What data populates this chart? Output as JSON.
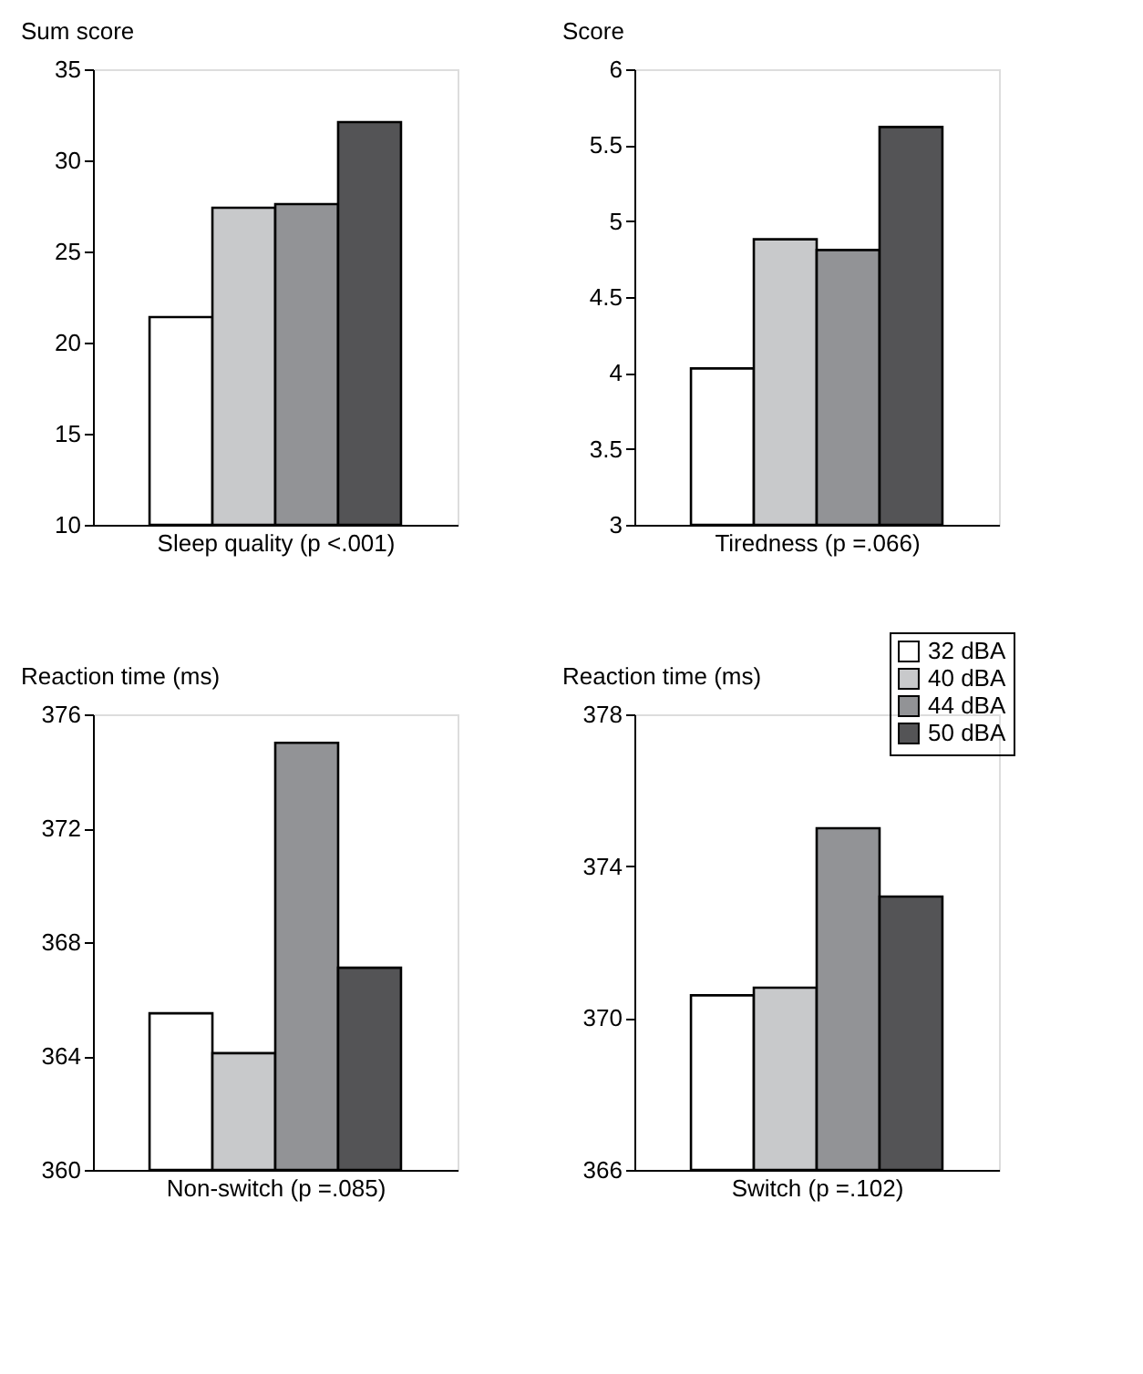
{
  "chart_data": [
    {
      "type": "bar",
      "xlabel": "Sleep quality (p <.001)",
      "ylabel": "Sum score",
      "categories": [
        null
      ],
      "ylim": [
        10,
        35
      ],
      "yticks": [
        10,
        15,
        20,
        25,
        30,
        35
      ],
      "grid": false,
      "legend": false,
      "series": [
        {
          "color": "#ffffff",
          "values": [
            21.4
          ]
        },
        {
          "color": "#c8c9cb",
          "values": [
            27.4
          ]
        },
        {
          "color": "#929396",
          "values": [
            27.6
          ]
        },
        {
          "color": "#545456",
          "values": [
            32.1
          ]
        }
      ]
    },
    {
      "type": "bar",
      "xlabel": "Tiredness (p =.066)",
      "ylabel": "Score",
      "categories": [
        null
      ],
      "ylim": [
        3,
        6
      ],
      "yticks": [
        3,
        3.5,
        4,
        4.5,
        5,
        5.5,
        6
      ],
      "grid": false,
      "legend": false,
      "series": [
        {
          "color": "#ffffff",
          "values": [
            4.03
          ]
        },
        {
          "color": "#c8c9cb",
          "values": [
            4.88
          ]
        },
        {
          "color": "#929396",
          "values": [
            4.81
          ]
        },
        {
          "color": "#545456",
          "values": [
            5.62
          ]
        }
      ]
    },
    {
      "type": "bar",
      "xlabel": "Non-switch (p =.085)",
      "ylabel": "Reaction time (ms)",
      "categories": [
        null
      ],
      "ylim": [
        360,
        376
      ],
      "yticks": [
        360,
        364,
        368,
        372,
        376
      ],
      "grid": false,
      "legend": false,
      "series": [
        {
          "color": "#ffffff",
          "values": [
            365.5
          ]
        },
        {
          "color": "#c8c9cb",
          "values": [
            364.1
          ]
        },
        {
          "color": "#929396",
          "values": [
            375.0
          ]
        },
        {
          "color": "#545456",
          "values": [
            367.1
          ]
        }
      ]
    },
    {
      "type": "bar",
      "xlabel": "Switch (p =.102)",
      "ylabel": "Reaction time (ms)",
      "categories": [
        null
      ],
      "ylim": [
        366,
        378
      ],
      "yticks": [
        366,
        370,
        374,
        378
      ],
      "grid": false,
      "legend": "top right",
      "series": [
        {
          "name": "32 dBA",
          "color": "#ffffff",
          "values": [
            370.6
          ]
        },
        {
          "name": "40 dBA",
          "color": "#c8c9cb",
          "values": [
            370.8
          ]
        },
        {
          "name": "44 dBA",
          "color": "#929396",
          "values": [
            375.0
          ]
        },
        {
          "name": "50 dBA",
          "color": "#545456",
          "values": [
            373.2
          ]
        }
      ]
    }
  ]
}
